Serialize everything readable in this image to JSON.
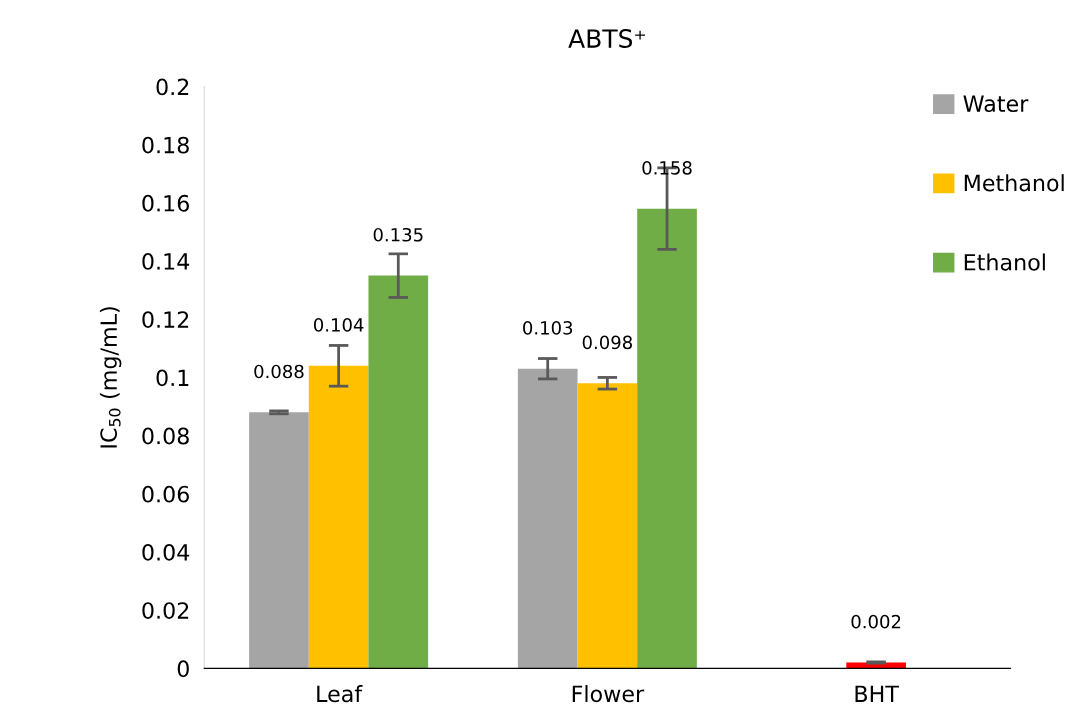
{
  "chart_data": {
    "type": "bar",
    "title": "ABTS⁺",
    "ylabel": "IC$_{50}$ (mg/mL)",
    "categories": [
      "Leaf",
      "Flower",
      "BHT"
    ],
    "series": [
      {
        "name": "Water",
        "color": "#a5a5a5",
        "values": [
          0.088,
          0.103,
          null
        ],
        "errors": [
          0.0005,
          0.0035,
          null
        ]
      },
      {
        "name": "Methanol",
        "color": "#ffc000",
        "colors": [
          "#ffc000",
          "#ffc000",
          "#ff0000"
        ],
        "values": [
          0.104,
          0.098,
          0.002
        ],
        "errors": [
          0.007,
          0.002,
          0.0002
        ]
      },
      {
        "name": "Ethanol",
        "color": "#70ad47",
        "values": [
          0.135,
          0.158,
          null
        ],
        "errors": [
          0.0075,
          0.014,
          null
        ]
      }
    ],
    "ylim": [
      0,
      0.2
    ],
    "yticks": [
      0,
      0.02,
      0.04,
      0.06,
      0.08,
      0.1,
      0.12,
      0.14,
      0.16,
      0.18,
      0.2
    ],
    "data_labels": true,
    "grid": false,
    "legend": "top right"
  }
}
